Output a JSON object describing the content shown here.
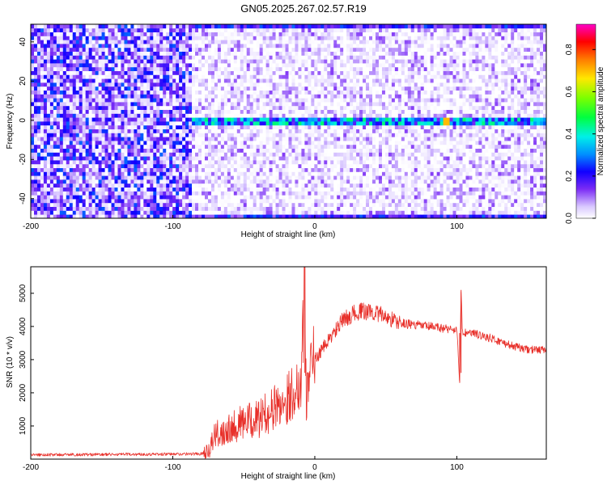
{
  "title": "GN05.2025.267.02.57.R19",
  "chart_data": [
    {
      "type": "heatmap",
      "xlabel": "Height of straight line (km)",
      "ylabel": "Frequency (Hz)",
      "xlim": [
        -200,
        163
      ],
      "ylim": [
        -50,
        49
      ],
      "xticks": [
        -200,
        -100,
        0,
        100
      ],
      "yticks": [
        -40,
        -20,
        0,
        20,
        40
      ],
      "colorbar": {
        "label": "Normalized spectral amplitude",
        "range": [
          0,
          0.92
        ],
        "ticks": [
          0.0,
          0.2,
          0.4,
          0.6,
          0.8
        ],
        "colormap": "rainbow (white → violet → blue → cyan → green → yellow → red → magenta)"
      },
      "features": {
        "noise_region_x": [
          -200,
          -87
        ],
        "signal_onset_x": -87,
        "carrier_frequency_hz": -1,
        "peak_amplitude": 0.7,
        "peak_x": 92
      }
    },
    {
      "type": "line",
      "xlabel": "Height of straight line (km)",
      "ylabel": "SNR (10 * v/v)",
      "xlim": [
        -200,
        163
      ],
      "ylim": [
        0,
        5800
      ],
      "xticks": [
        -200,
        -100,
        0,
        100
      ],
      "yticks": [
        1000,
        2000,
        3000,
        4000,
        5000
      ],
      "series_color": "#e8302a",
      "x": [
        -200,
        -150,
        -100,
        -80,
        -75,
        -70,
        -60,
        -50,
        -40,
        -30,
        -20,
        -10,
        -7,
        -6,
        -5,
        -4,
        0,
        10,
        20,
        30,
        40,
        50,
        60,
        70,
        80,
        90,
        100,
        102,
        103,
        104,
        110,
        120,
        130,
        140,
        150,
        163
      ],
      "y": [
        130,
        140,
        150,
        160,
        300,
        700,
        1000,
        1100,
        1200,
        1500,
        1800,
        2300,
        5800,
        1200,
        2600,
        2800,
        3000,
        3600,
        4200,
        4450,
        4450,
        4300,
        4100,
        4050,
        4000,
        3950,
        3900,
        2300,
        5100,
        3800,
        3800,
        3700,
        3550,
        3400,
        3300,
        3300
      ]
    }
  ]
}
